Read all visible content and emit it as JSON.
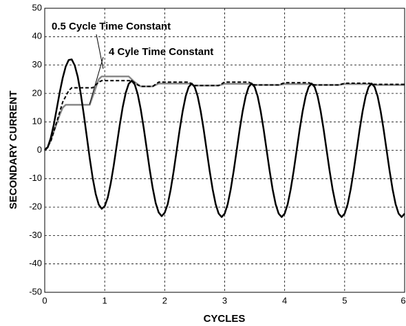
{
  "chart_data": {
    "type": "line",
    "xlabel": "CYCLES",
    "ylabel": "SECONDARY CURRENT",
    "xlim": [
      0,
      6
    ],
    "xticks": [
      0,
      1,
      2,
      3,
      4,
      5,
      6
    ],
    "ylim": [
      -50,
      50
    ],
    "yticks": [
      -50,
      -40,
      -30,
      -20,
      -10,
      0,
      10,
      20,
      30,
      40,
      50
    ],
    "grid": true,
    "series": [
      {
        "color": "#000000",
        "style": "solid",
        "x": [
          0,
          0.05,
          0.1,
          0.15,
          0.2,
          0.25,
          0.3,
          0.35,
          0.4,
          0.45,
          0.5,
          0.55,
          0.6,
          0.65,
          0.7,
          0.75,
          0.8,
          0.85,
          0.9,
          0.95,
          1,
          1.05,
          1.1,
          1.15,
          1.2,
          1.25,
          1.3,
          1.35,
          1.4,
          1.45,
          1.5,
          1.55,
          1.6,
          1.65,
          1.7,
          1.75,
          1.8,
          1.85,
          1.9,
          1.95,
          2,
          2.05,
          2.1,
          2.15,
          2.2,
          2.25,
          2.3,
          2.35,
          2.4,
          2.45,
          2.5,
          2.55,
          2.6,
          2.65,
          2.7,
          2.75,
          2.8,
          2.85,
          2.9,
          2.95,
          3,
          3.05,
          3.1,
          3.15,
          3.2,
          3.25,
          3.3,
          3.35,
          3.4,
          3.45,
          3.5,
          3.55,
          3.6,
          3.65,
          3.7,
          3.75,
          3.8,
          3.85,
          3.9,
          3.95,
          4,
          4.05,
          4.1,
          4.15,
          4.2,
          4.25,
          4.3,
          4.35,
          4.4,
          4.45,
          4.5,
          4.55,
          4.6,
          4.65,
          4.7,
          4.75,
          4.8,
          4.85,
          4.9,
          4.95,
          5,
          5.05,
          5.1,
          5.15,
          5.2,
          5.25,
          5.3,
          5.35,
          5.4,
          5.45,
          5.5,
          5.55,
          5.6,
          5.65,
          5.7,
          5.75,
          5.8,
          5.85,
          5.9,
          5.95,
          6
        ],
        "values": [
          0,
          1.1,
          4.3,
          8.9,
          14.6,
          20.4,
          25.5,
          29.5,
          31.8,
          32,
          29.9,
          25.9,
          20,
          12.8,
          5,
          -2.8,
          -9.8,
          -15.4,
          -19.1,
          -20.6,
          -19.7,
          -16.7,
          -11.7,
          -5.4,
          1.7,
          8.8,
          15.2,
          20.2,
          23.4,
          24.5,
          23.2,
          19.8,
          14.5,
          7.9,
          0.6,
          -6.8,
          -13.3,
          -18.6,
          -21.9,
          -23.2,
          -22,
          -19,
          -13.8,
          -7.3,
          0,
          7.3,
          13.8,
          19,
          22.3,
          23.5,
          22.3,
          19,
          13.8,
          7.3,
          0,
          -7.3,
          -13.8,
          -19,
          -22.3,
          -23.5,
          -22.3,
          -19,
          -13.8,
          -7.3,
          0,
          7.3,
          13.8,
          19,
          22.3,
          23.5,
          22.3,
          19,
          13.8,
          7.3,
          0,
          -7.3,
          -13.8,
          -19,
          -22.3,
          -23.5,
          -22.3,
          -19,
          -13.8,
          -7.3,
          0,
          7.3,
          13.8,
          19,
          22.3,
          23.5,
          22.3,
          19,
          13.8,
          7.3,
          0,
          -7.3,
          -13.8,
          -19,
          -22.3,
          -23.5,
          -22.3,
          -19,
          -13.8,
          -7.3,
          0,
          7.3,
          13.8,
          19,
          22.3,
          23.5,
          22.3,
          19,
          13.8,
          7.3,
          0,
          -7.3,
          -13.8,
          -19,
          -22.3,
          -23.5,
          -22.3
        ]
      },
      {
        "name": "0.5 Cycle Time Constant",
        "color": "#000000",
        "style": "dashed",
        "x": [
          0,
          0.1,
          0.2,
          0.3,
          0.4,
          0.45,
          0.8,
          0.9,
          0.95,
          1.45,
          1.55,
          1.6,
          1.8,
          1.9,
          2.4,
          2.5,
          2.9,
          3,
          3.4,
          3.5,
          3.9,
          4,
          4.4,
          4.5,
          4.9,
          5,
          5.4,
          5.5,
          6
        ],
        "values": [
          0,
          3,
          10,
          17,
          21,
          22,
          22,
          24,
          24.5,
          24.5,
          23,
          22.5,
          22.5,
          24,
          24,
          22.8,
          22.8,
          24,
          24,
          23,
          23,
          23.8,
          23.8,
          23,
          23,
          23.6,
          23.6,
          23.2,
          23.2
        ]
      },
      {
        "name": "4 Cyle Time Constant",
        "color": "#888888",
        "style": "solid",
        "x": [
          0,
          0.05,
          0.1,
          0.15,
          0.2,
          0.25,
          0.3,
          0.35,
          0.75,
          0.8,
          0.9,
          0.95,
          1.4,
          1.5,
          1.6,
          1.8,
          1.9,
          2.4,
          2.5,
          2.9,
          3,
          3.4,
          3.5,
          3.9,
          4,
          4.4,
          4.5,
          4.9,
          5,
          5.4,
          5.5,
          6
        ],
        "values": [
          0,
          1,
          3.5,
          6.5,
          9.5,
          12.5,
          15,
          16,
          16,
          19,
          25,
          26,
          26,
          24,
          22.5,
          22.5,
          23.5,
          23.5,
          22.8,
          22.8,
          23.4,
          23.4,
          23,
          23,
          23.3,
          23.3,
          23,
          23,
          23.3,
          23.3,
          23,
          23
        ]
      }
    ]
  }
}
